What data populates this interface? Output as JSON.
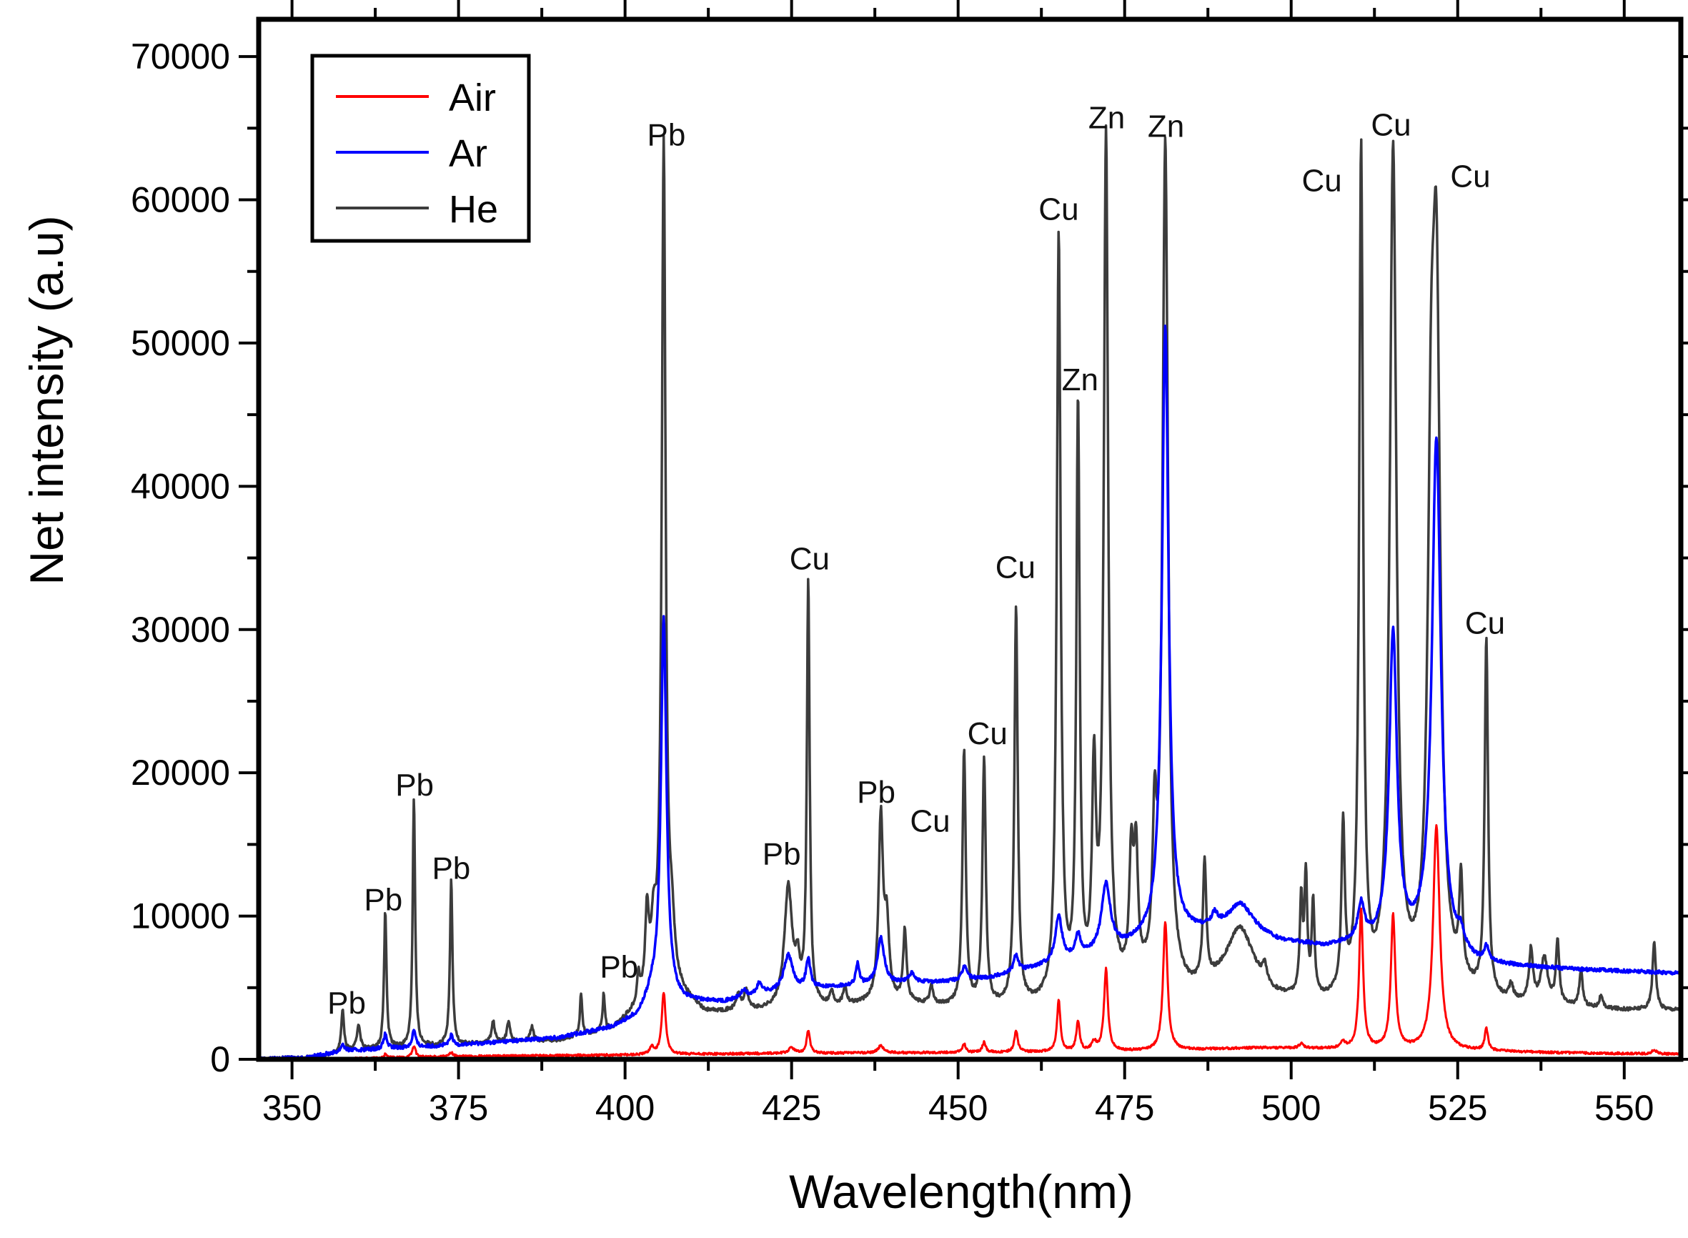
{
  "chart_data": {
    "type": "line",
    "title": "",
    "xlabel": "Wavelength(nm)",
    "ylabel": "Net intensity (a.u)",
    "xlim": [
      345,
      558.5
    ],
    "ylim": [
      0,
      72600
    ],
    "xticks": [
      350,
      375,
      400,
      425,
      450,
      475,
      500,
      525,
      550
    ],
    "xtick_labels": [
      "350",
      "375",
      "400",
      "425",
      "450",
      "475",
      "500",
      "525",
      "550"
    ],
    "yticks": [
      0,
      10000,
      20000,
      30000,
      40000,
      50000,
      60000,
      70000
    ],
    "ytick_labels": [
      "0",
      "10000",
      "20000",
      "30000",
      "40000",
      "50000",
      "60000",
      "70000"
    ],
    "grid": false,
    "legend": {
      "placement": "top-left",
      "entries": [
        "Air",
        "Ar",
        "He"
      ]
    },
    "series": [
      {
        "name": "He",
        "color": "#3c3c3c",
        "baseline": [
          [
            345,
            0
          ],
          [
            352,
            100
          ],
          [
            360,
            600
          ],
          [
            375,
            1000
          ],
          [
            390,
            1300
          ],
          [
            398,
            2000
          ],
          [
            402,
            3500
          ],
          [
            404,
            5500
          ],
          [
            408,
            4500
          ],
          [
            412,
            3200
          ],
          [
            420,
            3300
          ],
          [
            430,
            3600
          ],
          [
            440,
            3900
          ],
          [
            448,
            3600
          ],
          [
            455,
            3500
          ],
          [
            462,
            3600
          ],
          [
            470,
            4200
          ],
          [
            478,
            4800
          ],
          [
            485,
            4300
          ],
          [
            492,
            5200
          ],
          [
            497,
            4000
          ],
          [
            505,
            3800
          ],
          [
            515,
            4200
          ],
          [
            525,
            4400
          ],
          [
            532,
            3800
          ],
          [
            540,
            3600
          ],
          [
            550,
            3400
          ],
          [
            558.5,
            3400
          ]
        ],
        "peaks": [
          [
            357.6,
            3000,
            0.25
          ],
          [
            360.0,
            1800,
            0.3
          ],
          [
            364.0,
            9600,
            0.22
          ],
          [
            368.3,
            17400,
            0.22
          ],
          [
            373.9,
            11500,
            0.22
          ],
          [
            380.2,
            1500,
            0.3
          ],
          [
            382.5,
            1400,
            0.3
          ],
          [
            386.0,
            1000,
            0.3
          ],
          [
            393.4,
            3000,
            0.2
          ],
          [
            396.8,
            2600,
            0.2
          ],
          [
            402.0,
            2000,
            0.25
          ],
          [
            403.3,
            5200,
            0.3
          ],
          [
            404.3,
            3000,
            0.35
          ],
          [
            405.8,
            58500,
            0.35
          ],
          [
            407.0,
            3500,
            0.5
          ],
          [
            417.0,
            1100,
            0.4
          ],
          [
            418.2,
            1300,
            0.4
          ],
          [
            424.5,
            8400,
            0.7
          ],
          [
            425.9,
            2500,
            0.4
          ],
          [
            427.5,
            29500,
            0.25
          ],
          [
            431.0,
            900,
            0.3
          ],
          [
            433.0,
            1200,
            0.3
          ],
          [
            438.4,
            12800,
            0.4
          ],
          [
            439.3,
            5000,
            0.4
          ],
          [
            442.0,
            5000,
            0.3
          ],
          [
            446.0,
            1300,
            0.3
          ],
          [
            450.9,
            17800,
            0.3
          ],
          [
            453.9,
            17200,
            0.3
          ],
          [
            458.7,
            27800,
            0.3
          ],
          [
            465.1,
            53200,
            0.35
          ],
          [
            468.0,
            40800,
            0.3
          ],
          [
            470.4,
            14500,
            0.35
          ],
          [
            472.2,
            59400,
            0.4
          ],
          [
            476.0,
            8500,
            0.35
          ],
          [
            476.7,
            8500,
            0.35
          ],
          [
            479.5,
            9500,
            0.35
          ],
          [
            481.1,
            58800,
            0.5
          ],
          [
            487.0,
            8300,
            0.3
          ],
          [
            492.4,
            3800,
            2.5
          ],
          [
            496.0,
            1200,
            0.4
          ],
          [
            501.5,
            6500,
            0.25
          ],
          [
            502.2,
            8200,
            0.25
          ],
          [
            503.3,
            6500,
            0.25
          ],
          [
            507.8,
            11600,
            0.3
          ],
          [
            510.5,
            58800,
            0.35
          ],
          [
            515.3,
            58600,
            0.6
          ],
          [
            521.0,
            28000,
            0.6
          ],
          [
            521.8,
            45000,
            0.7
          ],
          [
            525.5,
            6800,
            0.3
          ],
          [
            529.3,
            24800,
            0.3
          ],
          [
            533.0,
            1000,
            0.4
          ],
          [
            536.0,
            3600,
            0.35
          ],
          [
            538.0,
            3200,
            0.6
          ],
          [
            540.0,
            4300,
            0.3
          ],
          [
            543.5,
            2500,
            0.3
          ],
          [
            546.5,
            800,
            0.3
          ],
          [
            554.5,
            4800,
            0.3
          ]
        ]
      },
      {
        "name": "Ar",
        "color": "#0000ff",
        "baseline": [
          [
            345,
            0
          ],
          [
            352,
            100
          ],
          [
            358,
            600
          ],
          [
            375,
            1000
          ],
          [
            390,
            1500
          ],
          [
            398,
            2200
          ],
          [
            402,
            3000
          ],
          [
            404,
            4500
          ],
          [
            409,
            4000
          ],
          [
            415,
            4000
          ],
          [
            422,
            4600
          ],
          [
            430,
            5000
          ],
          [
            440,
            5300
          ],
          [
            448,
            5400
          ],
          [
            455,
            5700
          ],
          [
            462,
            6400
          ],
          [
            468,
            7000
          ],
          [
            475,
            7800
          ],
          [
            480,
            8500
          ],
          [
            486,
            8800
          ],
          [
            492,
            9300
          ],
          [
            498,
            8200
          ],
          [
            505,
            7800
          ],
          [
            510,
            8000
          ],
          [
            520,
            8000
          ],
          [
            528,
            6600
          ],
          [
            535,
            6400
          ],
          [
            545,
            6200
          ],
          [
            558.5,
            6000
          ]
        ],
        "peaks": [
          [
            357.6,
            500,
            0.3
          ],
          [
            364.0,
            1000,
            0.3
          ],
          [
            368.3,
            1200,
            0.3
          ],
          [
            373.9,
            700,
            0.3
          ],
          [
            405.8,
            26500,
            0.5
          ],
          [
            417.8,
            500,
            0.5
          ],
          [
            420.2,
            800,
            0.5
          ],
          [
            424.5,
            2500,
            0.8
          ],
          [
            427.5,
            2000,
            0.4
          ],
          [
            434.9,
            1500,
            0.3
          ],
          [
            438.4,
            3200,
            0.6
          ],
          [
            443.0,
            600,
            0.5
          ],
          [
            451.0,
            1000,
            0.4
          ],
          [
            458.7,
            1200,
            0.4
          ],
          [
            465.1,
            3200,
            0.6
          ],
          [
            468.0,
            1500,
            0.5
          ],
          [
            472.2,
            4600,
            0.8
          ],
          [
            481.1,
            42500,
            0.6
          ],
          [
            488.5,
            800,
            0.5
          ],
          [
            492.5,
            1500,
            2.0
          ],
          [
            510.5,
            2500,
            0.6
          ],
          [
            515.3,
            21500,
            0.7
          ],
          [
            521.8,
            35500,
            0.8
          ],
          [
            525.5,
            1000,
            0.5
          ],
          [
            529.3,
            1000,
            0.4
          ]
        ]
      },
      {
        "name": "Air",
        "color": "#ff0000",
        "baseline": [
          [
            345,
            0
          ],
          [
            355,
            0
          ],
          [
            375,
            200
          ],
          [
            400,
            300
          ],
          [
            420,
            400
          ],
          [
            440,
            450
          ],
          [
            460,
            500
          ],
          [
            480,
            600
          ],
          [
            495,
            800
          ],
          [
            510,
            700
          ],
          [
            525,
            600
          ],
          [
            540,
            450
          ],
          [
            558.5,
            350
          ]
        ],
        "peaks": [
          [
            364.0,
            250,
            0.3
          ],
          [
            368.3,
            800,
            0.3
          ],
          [
            373.9,
            300,
            0.3
          ],
          [
            404.0,
            500,
            0.4
          ],
          [
            405.8,
            4300,
            0.35
          ],
          [
            425.0,
            400,
            0.5
          ],
          [
            427.5,
            1600,
            0.3
          ],
          [
            438.4,
            500,
            0.5
          ],
          [
            450.9,
            600,
            0.3
          ],
          [
            453.9,
            700,
            0.3
          ],
          [
            458.7,
            1500,
            0.3
          ],
          [
            465.1,
            3600,
            0.3
          ],
          [
            468.0,
            2100,
            0.3
          ],
          [
            470.4,
            600,
            0.4
          ],
          [
            472.2,
            5700,
            0.35
          ],
          [
            481.1,
            9000,
            0.4
          ],
          [
            501.5,
            300,
            0.4
          ],
          [
            507.8,
            400,
            0.4
          ],
          [
            510.5,
            9800,
            0.35
          ],
          [
            515.3,
            9300,
            0.4
          ],
          [
            521.8,
            15600,
            0.6
          ],
          [
            529.3,
            1500,
            0.3
          ],
          [
            554.5,
            300,
            0.4
          ]
        ]
      }
    ],
    "annotations": [
      {
        "text": "Pb",
        "x": 358.2,
        "y": 4000
      },
      {
        "text": "Pb",
        "x": 363.7,
        "y": 11200
      },
      {
        "text": "Pb",
        "x": 368.4,
        "y": 19200
      },
      {
        "text": "Pb",
        "x": 373.9,
        "y": 13400
      },
      {
        "text": "Pb",
        "x": 399.1,
        "y": 6500
      },
      {
        "text": "Pb",
        "x": 406.2,
        "y": 64600
      },
      {
        "text": "Pb",
        "x": 423.5,
        "y": 14400
      },
      {
        "text": "Cu",
        "x": 427.7,
        "y": 35000
      },
      {
        "text": "Pb",
        "x": 437.7,
        "y": 18700
      },
      {
        "text": "Cu",
        "x": 445.8,
        "y": 16700
      },
      {
        "text": "Cu",
        "x": 454.4,
        "y": 22800
      },
      {
        "text": "Cu",
        "x": 458.6,
        "y": 34400
      },
      {
        "text": "Cu",
        "x": 465.1,
        "y": 59400
      },
      {
        "text": "Zn",
        "x": 468.3,
        "y": 47500
      },
      {
        "text": "Zn",
        "x": 472.3,
        "y": 65800
      },
      {
        "text": "Zn",
        "x": 481.2,
        "y": 65200
      },
      {
        "text": "Cu",
        "x": 504.6,
        "y": 61400
      },
      {
        "text": "Cu",
        "x": 515.0,
        "y": 65300
      },
      {
        "text": "Cu",
        "x": 526.9,
        "y": 61700
      },
      {
        "text": "Cu",
        "x": 529.1,
        "y": 30500
      }
    ]
  }
}
